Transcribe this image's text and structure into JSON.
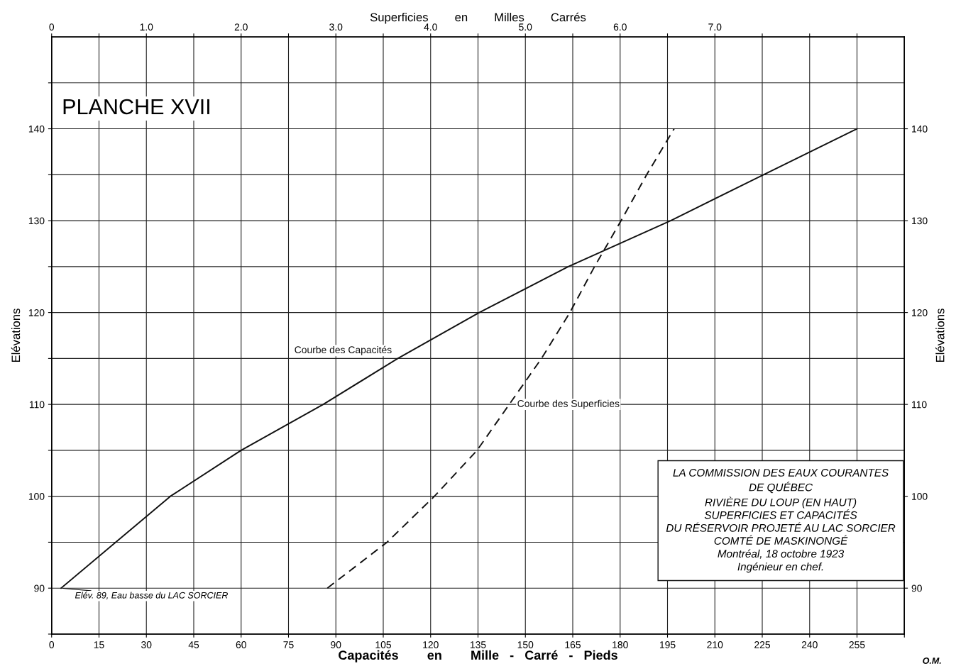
{
  "chart_data": {
    "type": "line",
    "title": "PLANCHE XVII",
    "xlabel": "Capacités        en        Mille   -   Carré   -   Pieds",
    "x2label": "Superficies        en        Milles        Carrés",
    "ylabel": "Elévations",
    "y2label": "Elévations",
    "series": [
      {
        "name": "Courbe des Capacités",
        "color": "#111111",
        "line_style": "solid",
        "x": [
          3,
          37.6,
          60,
          86,
          109.6,
          135.4,
          163.6,
          196,
          225.4,
          255
        ],
        "values": [
          90,
          100,
          105,
          110,
          115,
          120,
          125,
          130,
          135,
          140
        ]
      },
      {
        "name": "Courbe des Superficies",
        "color": "#111111",
        "line_style": "dashed",
        "axis": "x2",
        "x": [
          2.91,
          3.54,
          4.04,
          4.49,
          4.83,
          5.17,
          5.47,
          5.73,
          6.01,
          6.28,
          6.57
        ],
        "values": [
          90,
          95,
          100,
          105,
          110,
          115,
          120,
          125,
          130,
          135,
          140
        ]
      }
    ],
    "xlim": [
      0,
      270
    ],
    "xticks": [
      0,
      15,
      30,
      45,
      60,
      75,
      90,
      105,
      120,
      135,
      150,
      165,
      180,
      195,
      210,
      225,
      240,
      255,
      {
        "value": 270,
        "label": null
      }
    ],
    "x2lim": [
      0,
      9.0
    ],
    "x2ticks": [
      0,
      {
        "value": 0.5,
        "label": null
      },
      {
        "value": 1.0,
        "label": "1.0"
      },
      {
        "value": 1.5,
        "label": null
      },
      {
        "value": 2.0,
        "label": "2.0"
      },
      {
        "value": 2.5,
        "label": null
      },
      {
        "value": 3.0,
        "label": "3.0"
      },
      {
        "value": 3.5,
        "label": null
      },
      {
        "value": 4.0,
        "label": "4.0"
      },
      {
        "value": 4.5,
        "label": null
      },
      {
        "value": 5.0,
        "label": "5.0"
      },
      {
        "value": 5.5,
        "label": null
      },
      {
        "value": 6.0,
        "label": "6.0"
      },
      {
        "value": 6.5,
        "label": null
      },
      {
        "value": 7.0,
        "label": "7.0"
      },
      {
        "value": 7.5,
        "label": null
      },
      {
        "value": 8.0,
        "label": null
      },
      {
        "value": 8.5,
        "label": null
      }
    ],
    "ylim": [
      85,
      150
    ],
    "yticks": [
      {
        "value": 85,
        "label": null
      },
      90,
      {
        "value": 95,
        "label": null
      },
      100,
      {
        "value": 105,
        "label": null
      },
      110,
      {
        "value": 115,
        "label": null
      },
      120,
      {
        "value": 125,
        "label": null
      },
      130,
      {
        "value": 135,
        "label": null
      },
      140,
      {
        "value": 145,
        "label": null
      }
    ],
    "y2lim": [
      85,
      150
    ],
    "y2ticks": [
      90,
      100,
      110,
      120,
      130,
      140
    ],
    "grid": true,
    "legend": false,
    "marker": "none",
    "annotations": [
      {
        "text": "Elév. 89, Eau basse du LAC SORCIER",
        "x": 3,
        "y": 90
      },
      "LA COMMISSION DES EAUX COURANTES\nDE QUÉBEC\nRIVIÈRE DU LOUP (EN HAUT)\nSUPERFICIES ET CAPACITÉS\nDU RÉSERVOIR PROJETÉ AU LAC SORCIER\nCOMTÉ DE MASKINONGÉ\nMontréal, 18 octobre 1923\nIngénieur en chef.",
      "O.M."
    ]
  }
}
